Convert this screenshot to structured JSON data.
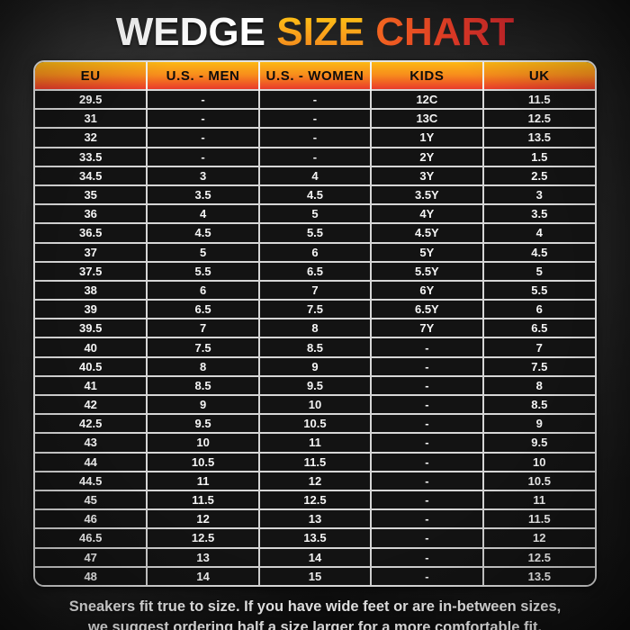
{
  "title": {
    "word1": "WEDGE",
    "word2": "SIZE",
    "word3": "CHART"
  },
  "chart_data": {
    "type": "table",
    "title": "WEDGE SIZE CHART",
    "columns": [
      "EU",
      "U.S. - MEN",
      "U.S. - WOMEN",
      "KIDS",
      "UK"
    ],
    "rows": [
      [
        "29.5",
        "-",
        "-",
        "12C",
        "11.5"
      ],
      [
        "31",
        "-",
        "-",
        "13C",
        "12.5"
      ],
      [
        "32",
        "-",
        "-",
        "1Y",
        "13.5"
      ],
      [
        "33.5",
        "-",
        "-",
        "2Y",
        "1.5"
      ],
      [
        "34.5",
        "3",
        "4",
        "3Y",
        "2.5"
      ],
      [
        "35",
        "3.5",
        "4.5",
        "3.5Y",
        "3"
      ],
      [
        "36",
        "4",
        "5",
        "4Y",
        "3.5"
      ],
      [
        "36.5",
        "4.5",
        "5.5",
        "4.5Y",
        "4"
      ],
      [
        "37",
        "5",
        "6",
        "5Y",
        "4.5"
      ],
      [
        "37.5",
        "5.5",
        "6.5",
        "5.5Y",
        "5"
      ],
      [
        "38",
        "6",
        "7",
        "6Y",
        "5.5"
      ],
      [
        "39",
        "6.5",
        "7.5",
        "6.5Y",
        "6"
      ],
      [
        "39.5",
        "7",
        "8",
        "7Y",
        "6.5"
      ],
      [
        "40",
        "7.5",
        "8.5",
        "-",
        "7"
      ],
      [
        "40.5",
        "8",
        "9",
        "-",
        "7.5"
      ],
      [
        "41",
        "8.5",
        "9.5",
        "-",
        "8"
      ],
      [
        "42",
        "9",
        "10",
        "-",
        "8.5"
      ],
      [
        "42.5",
        "9.5",
        "10.5",
        "-",
        "9"
      ],
      [
        "43",
        "10",
        "11",
        "-",
        "9.5"
      ],
      [
        "44",
        "10.5",
        "11.5",
        "-",
        "10"
      ],
      [
        "44.5",
        "11",
        "12",
        "-",
        "10.5"
      ],
      [
        "45",
        "11.5",
        "12.5",
        "-",
        "11"
      ],
      [
        "46",
        "12",
        "13",
        "-",
        "11.5"
      ],
      [
        "46.5",
        "12.5",
        "13.5",
        "-",
        "12"
      ],
      [
        "47",
        "13",
        "14",
        "-",
        "12.5"
      ],
      [
        "48",
        "14",
        "15",
        "-",
        "13.5"
      ]
    ]
  },
  "footer": {
    "line1": "Sneakers fit true to size. If you have wide feet or are in-between sizes,",
    "line2": "we suggest ordering half a size larger for a more comfortable fit."
  },
  "colors": {
    "background": "#262626",
    "title_wedge": "#ffffff",
    "title_size_top": "#fdc613",
    "title_size_bottom": "#f1821c",
    "title_chart_left": "#f4691f",
    "title_chart_right": "#c8232b",
    "header_gradient_top": "#fcb814",
    "header_gradient_bottom": "#e83c2a",
    "header_text": "#0e0c0b",
    "cell_background": "#131313",
    "cell_text": "#f5f5f5",
    "grid_border": "#d6d6d6"
  }
}
